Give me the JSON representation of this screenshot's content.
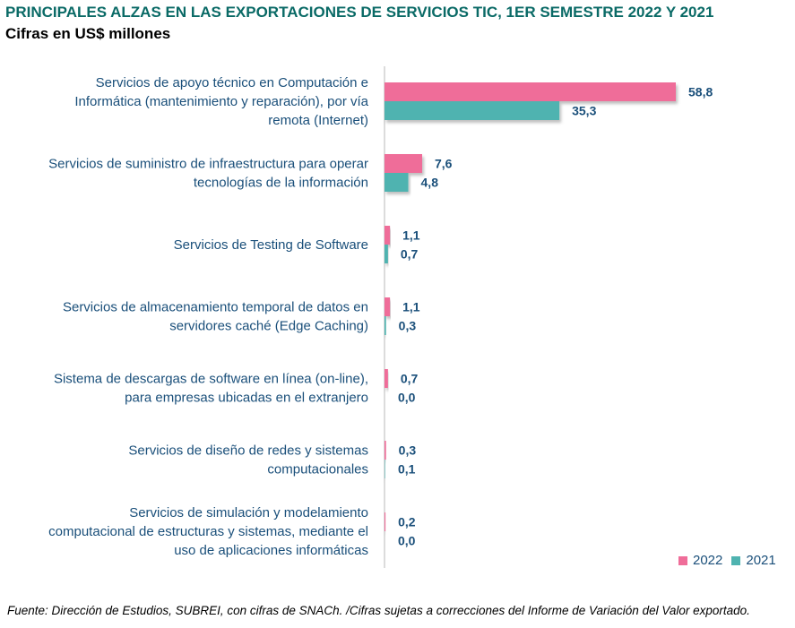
{
  "chart_data": {
    "type": "bar",
    "orientation": "horizontal",
    "title": "PRINCIPALES ALZAS EN LAS EXPORTACIONES DE SERVICIOS TIC, 1ER SEMESTRE 2022 Y 2021",
    "subtitle": "Cifras en US$ millones",
    "categories": [
      [
        "Servicios de apoyo técnico en Computación e",
        "Informática (mantenimiento y reparación), por vía",
        "remota (Internet)"
      ],
      [
        "Servicios de suministro de infraestructura para operar",
        "tecnologías de la información"
      ],
      [
        "Servicios de Testing de Software"
      ],
      [
        "Servicios de almacenamiento temporal de datos en",
        "servidores caché (Edge Caching)"
      ],
      [
        "Sistema de descargas de software en línea (on-line),",
        "para empresas ubicadas en el extranjero"
      ],
      [
        "Servicios de diseño de redes y sistemas",
        "computacionales"
      ],
      [
        "Servicios de simulación y modelamiento",
        "computacional de estructuras y sistemas, mediante el",
        "uso de aplicaciones informáticas"
      ]
    ],
    "series": [
      {
        "name": "2022",
        "color": "#ef6d99",
        "values": [
          58.8,
          7.6,
          1.1,
          1.1,
          0.7,
          0.3,
          0.2
        ],
        "labels": [
          "58,8",
          "7,6",
          "1,1",
          "1,1",
          "0,7",
          "0,3",
          "0,2"
        ]
      },
      {
        "name": "2021",
        "color": "#4fb3b0",
        "values": [
          35.3,
          4.8,
          0.7,
          0.3,
          0.0,
          0.1,
          0.0
        ],
        "labels": [
          "35,3",
          "4,8",
          "0,7",
          "0,3",
          "0,0",
          "0,1",
          "0,0"
        ]
      }
    ],
    "xlim": [
      0,
      58.8
    ],
    "legend_position": "bottom-right",
    "grid": false
  },
  "legend": {
    "items": [
      "2022",
      "2021"
    ]
  },
  "source": "Fuente: Dirección de Estudios, SUBREI, con cifras de SNACh. /Cifras sujetas a correcciones del Informe de Variación del Valor exportado."
}
